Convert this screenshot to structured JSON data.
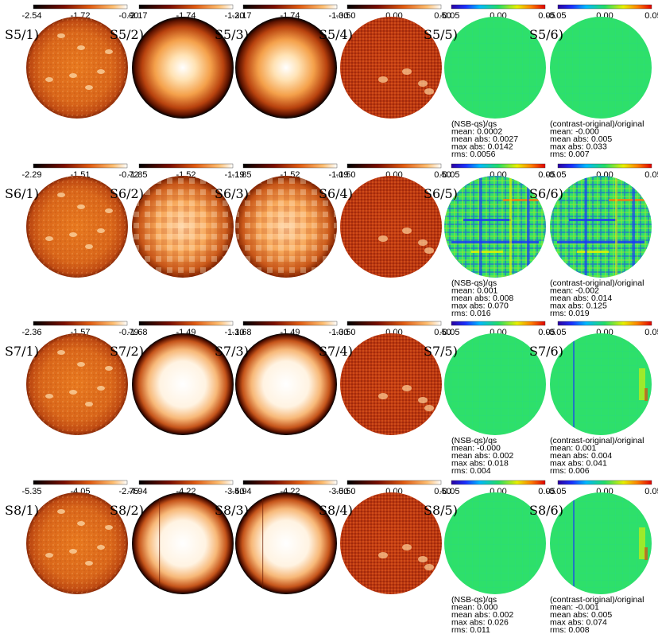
{
  "rows": [
    {
      "id": "S5",
      "panels": [
        {
          "label": "S5/1)",
          "cmap": "heat",
          "ticks": [
            "-2.54",
            "-1.72",
            "-0.90"
          ],
          "disk": "speckled"
        },
        {
          "label": "S5/2)",
          "cmap": "heat",
          "ticks": [
            "-2.17",
            "-1.74",
            "-1.30"
          ],
          "disk": "smooth"
        },
        {
          "label": "S5/3)",
          "cmap": "heat",
          "ticks": [
            "-2.17",
            "-1.74",
            "-1.30"
          ],
          "disk": "smooth"
        },
        {
          "label": "S5/4)",
          "cmap": "heat",
          "ticks": [
            "-0.50",
            "0.00",
            "0.50"
          ],
          "disk": "noise"
        },
        {
          "label": "S5/5)",
          "cmap": "rainbow",
          "ticks": [
            "-0.05",
            "0.00",
            "0.05"
          ],
          "disk": "diff-low"
        },
        {
          "label": "S5/6)",
          "cmap": "rainbow",
          "ticks": [
            "-0.05",
            "0.00",
            "0.05"
          ],
          "disk": "diff-low"
        }
      ],
      "stats5": {
        "title": "(NSB-qs)/qs",
        "mean": "0.0002",
        "mean_abs": "0.0027",
        "max_abs": "0.0142",
        "rms": "0.0056"
      },
      "stats6": {
        "title": "(contrast-original)/original",
        "mean": "-0.000",
        "mean_abs": "0.005",
        "max_abs": "0.033",
        "rms": "0.007"
      }
    },
    {
      "id": "S6",
      "panels": [
        {
          "label": "S6/1)",
          "cmap": "heat",
          "ticks": [
            "-2.29",
            "-1.51",
            "-0.72"
          ],
          "disk": "speckled"
        },
        {
          "label": "S6/2)",
          "cmap": "heat",
          "ticks": [
            "-1.85",
            "-1.52",
            "-1.19"
          ],
          "disk": "blocky"
        },
        {
          "label": "S6/3)",
          "cmap": "heat",
          "ticks": [
            "-1.85",
            "-1.52",
            "-1.19"
          ],
          "disk": "blocky"
        },
        {
          "label": "S6/4)",
          "cmap": "heat",
          "ticks": [
            "-0.50",
            "0.00",
            "0.50"
          ],
          "disk": "noise"
        },
        {
          "label": "S6/5)",
          "cmap": "rainbow",
          "ticks": [
            "-0.05",
            "0.00",
            "0.05"
          ],
          "disk": "diff-high"
        },
        {
          "label": "S6/6)",
          "cmap": "rainbow",
          "ticks": [
            "-0.05",
            "0.00",
            "0.05"
          ],
          "disk": "diff-high"
        }
      ],
      "stats5": {
        "title": "(NSB-qs)/qs",
        "mean": "0.001",
        "mean_abs": "0.008",
        "max_abs": "0.070",
        "rms": "0.016"
      },
      "stats6": {
        "title": "(contrast-original)/original",
        "mean": "-0.002",
        "mean_abs": "0.014",
        "max_abs": "0.125",
        "rms": "0.019"
      }
    },
    {
      "id": "S7",
      "panels": [
        {
          "label": "S7/1)",
          "cmap": "heat",
          "ticks": [
            "-2.36",
            "-1.57",
            "-0.79"
          ],
          "disk": "speckled"
        },
        {
          "label": "S7/2)",
          "cmap": "heat",
          "ticks": [
            "-1.68",
            "-1.49",
            "-1.30"
          ],
          "disk": "smooth-bright"
        },
        {
          "label": "S7/3)",
          "cmap": "heat",
          "ticks": [
            "-1.68",
            "-1.49",
            "-1.30"
          ],
          "disk": "smooth-bright"
        },
        {
          "label": "S7/4)",
          "cmap": "heat",
          "ticks": [
            "-0.50",
            "0.00",
            "0.50"
          ],
          "disk": "noise"
        },
        {
          "label": "S7/5)",
          "cmap": "rainbow",
          "ticks": [
            "-0.05",
            "0.00",
            "0.05"
          ],
          "disk": "diff-low"
        },
        {
          "label": "S7/6)",
          "cmap": "rainbow",
          "ticks": [
            "-0.05",
            "0.00",
            "0.05"
          ],
          "disk": "diff-mid"
        }
      ],
      "stats5": {
        "title": "(NSB-qs)/qs",
        "mean": "-0.000",
        "mean_abs": "0.002",
        "max_abs": "0.018",
        "rms": "0.004"
      },
      "stats6": {
        "title": "(contrast-original)/original",
        "mean": "0.001",
        "mean_abs": "0.004",
        "max_abs": "0.041",
        "rms": "0.006"
      }
    },
    {
      "id": "S8",
      "panels": [
        {
          "label": "S8/1)",
          "cmap": "heat",
          "ticks": [
            "-5.35",
            "-4.05",
            "-2.75"
          ],
          "disk": "speckled"
        },
        {
          "label": "S8/2)",
          "cmap": "heat",
          "ticks": [
            "-4.94",
            "-4.22",
            "-3.50"
          ],
          "disk": "smooth-bright"
        },
        {
          "label": "S8/3)",
          "cmap": "heat",
          "ticks": [
            "-4.94",
            "-4.22",
            "-3.50"
          ],
          "disk": "smooth-bright"
        },
        {
          "label": "S8/4)",
          "cmap": "heat",
          "ticks": [
            "-0.50",
            "0.00",
            "0.50"
          ],
          "disk": "noise"
        },
        {
          "label": "S8/5)",
          "cmap": "rainbow",
          "ticks": [
            "-0.05",
            "0.00",
            "0.05"
          ],
          "disk": "diff-low"
        },
        {
          "label": "S8/6)",
          "cmap": "rainbow",
          "ticks": [
            "-0.05",
            "0.00",
            "0.05"
          ],
          "disk": "diff-mid"
        }
      ],
      "stats5": {
        "title": "(NSB-qs)/qs",
        "mean": "0.000",
        "mean_abs": "0.002",
        "max_abs": "0.026",
        "rms": "0.011"
      },
      "stats6": {
        "title": "(contrast-original)/original",
        "mean": "-0.001",
        "mean_abs": "0.005",
        "max_abs": "0.074",
        "rms": "0.008"
      }
    }
  ],
  "colors": {
    "heat_dark": "#000000",
    "heat_mid": "#c2410c",
    "heat_light": "#ffffff",
    "rainbow_center": "#22dd66",
    "label": "#000000"
  }
}
